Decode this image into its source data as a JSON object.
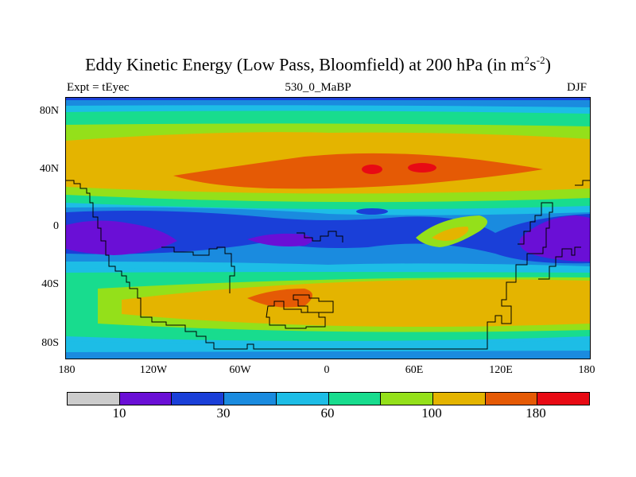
{
  "title": {
    "main": "Eddy Kinetic Energy (Low Pass, Bloomfield) at 200 hPa (in m",
    "sup1": "2",
    "mid": "s",
    "sup2": "-2",
    "end": ")"
  },
  "left_label": "Expt = tEyec",
  "center_label": "530_0_MaBP",
  "right_label": "DJF",
  "y_axis_labels": [
    "80N",
    "40N",
    "0",
    "40S",
    "80S"
  ],
  "x_axis_labels": [
    "180",
    "120W",
    "60W",
    "0",
    "60E",
    "120E",
    "180"
  ],
  "colorbar": {
    "colors": [
      "#cccccc",
      "#6a0fd6",
      "#1a3fd8",
      "#1a8bdf",
      "#1dbde6",
      "#18dc8e",
      "#94e01a",
      "#e4b400",
      "#e55a05",
      "#e80a14"
    ],
    "labels": [
      "10",
      "30",
      "60",
      "100",
      "180"
    ]
  },
  "map": {
    "colors": {
      "c1": "#6a0fd6",
      "c2": "#1a3fd8",
      "c3": "#1a8bdf",
      "c4": "#1dbde6",
      "c5": "#18dc8e",
      "c6": "#94e01a",
      "c7": "#e4b400",
      "c8": "#e55a05",
      "c9": "#e80a14"
    }
  }
}
